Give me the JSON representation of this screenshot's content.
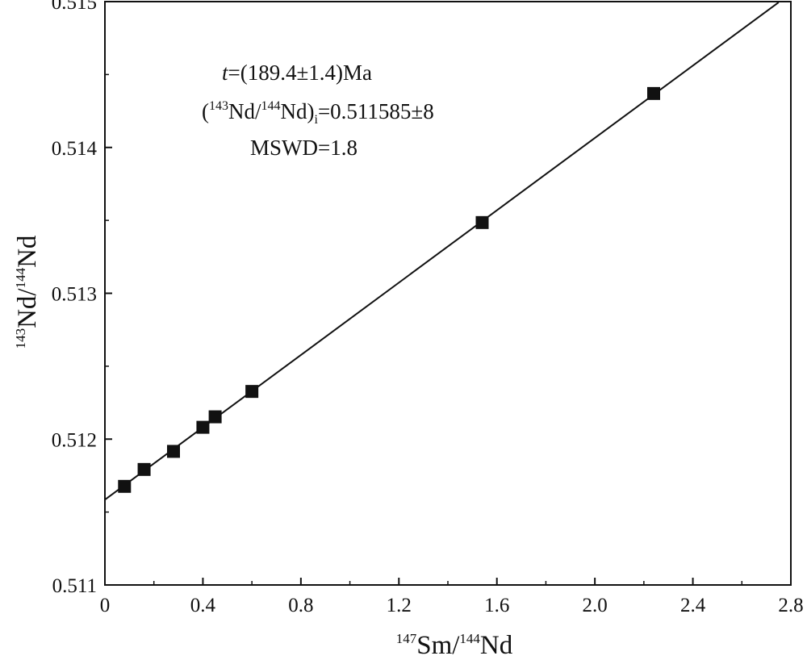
{
  "chart_data": {
    "type": "scatter",
    "xlim": [
      0,
      2.8
    ],
    "ylim": [
      0.511,
      0.515
    ],
    "x_ticks": [
      0,
      0.4,
      0.8,
      1.2,
      1.6,
      2.0,
      2.4,
      2.8
    ],
    "x_tick_labels": [
      "0",
      "0.4",
      "0.8",
      "1.2",
      "1.6",
      "2.0",
      "2.4",
      "2.8"
    ],
    "y_ticks": [
      0.511,
      0.512,
      0.513,
      0.514,
      0.515
    ],
    "y_tick_labels": [
      "0.511",
      "0.512",
      "0.513",
      "0.514",
      "0.515"
    ],
    "xlabel": {
      "sup": "147",
      "main1": "Sm/",
      "sup2": "144",
      "main2": "Nd"
    },
    "ylabel": {
      "sup": "143",
      "main1": "Nd/",
      "sup2": "144",
      "main2": "Nd"
    },
    "points": [
      {
        "x": 0.08,
        "y": 0.511676
      },
      {
        "x": 0.16,
        "y": 0.511792
      },
      {
        "x": 0.28,
        "y": 0.511916
      },
      {
        "x": 0.4,
        "y": 0.512081
      },
      {
        "x": 0.45,
        "y": 0.512153
      },
      {
        "x": 0.6,
        "y": 0.512327
      },
      {
        "x": 1.54,
        "y": 0.513485
      },
      {
        "x": 2.24,
        "y": 0.51437
      }
    ],
    "isochron": {
      "intercept": 0.511585,
      "slope": 0.00124,
      "x_range": [
        0,
        2.75
      ]
    },
    "annotations": {
      "line1_var": "t",
      "line1_rest": "=(189.4±1.4)Ma",
      "line2_open": "(",
      "line2_sup1": "143",
      "line2_mid": "Nd/",
      "line2_sup2": "144",
      "line2_close": "Nd)",
      "line2_sub": "i",
      "line2_value": "=0.511585±8",
      "line3": "MSWD=1.8"
    },
    "grid": false
  }
}
